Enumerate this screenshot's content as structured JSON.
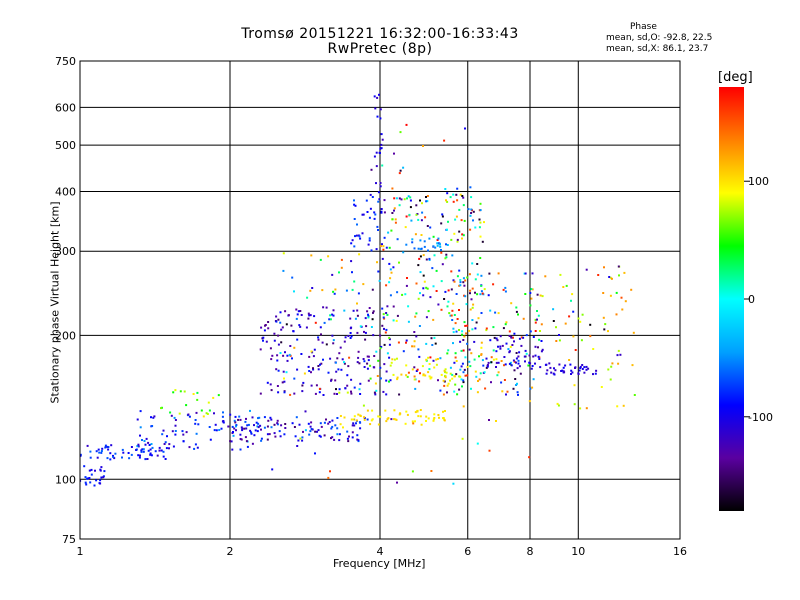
{
  "chart_data": {
    "type": "scatter",
    "title": "Tromsø 20151221 16:32:00-16:33:43",
    "subtitle": "RwPretec (8p)",
    "xlabel": "Frequency [MHz]",
    "ylabel": "Stationary phase Virtual Height [km]",
    "x_scale": "log",
    "y_scale": "log",
    "xlim": [
      1,
      16
    ],
    "ylim": [
      75,
      750
    ],
    "x_ticks": [
      1,
      2,
      4,
      6,
      8,
      10,
      16
    ],
    "y_ticks": [
      75,
      100,
      200,
      300,
      400,
      500,
      600,
      750
    ],
    "grid": true,
    "phase_stats": {
      "title": "Phase",
      "o_mode": "mean, sd,O: -92.8, 22.5",
      "x_mode": "mean, sd,X:  86.1, 23.7"
    },
    "colorbar": {
      "label": "[deg]",
      "ticks": [
        "100",
        "0",
        "-100"
      ],
      "tick_values": [
        100,
        0,
        -100
      ],
      "range": [
        -180,
        180
      ],
      "colors": [
        "#000000",
        "#5a00a0",
        "#0000ff",
        "#00a0ff",
        "#00ffff",
        "#00ff00",
        "#ffff00",
        "#ff8000",
        "#ff0000"
      ]
    },
    "clusters": [
      {
        "x": [
          1.0,
          1.12
        ],
        "y": [
          96,
          108
        ],
        "phase": [
          -110,
          -70
        ],
        "n": 25
      },
      {
        "x": [
          1.0,
          1.5
        ],
        "y": [
          110,
          118
        ],
        "phase": [
          -120,
          -60
        ],
        "n": 60
      },
      {
        "x": [
          1.3,
          2.3
        ],
        "y": [
          115,
          140
        ],
        "phase": [
          -130,
          -40
        ],
        "n": 90
      },
      {
        "x": [
          1.45,
          1.9
        ],
        "y": [
          135,
          155
        ],
        "phase": [
          20,
          110
        ],
        "n": 20
      },
      {
        "x": [
          2.0,
          3.8
        ],
        "y": [
          120,
          135
        ],
        "phase": [
          -150,
          -60
        ],
        "n": 110
      },
      {
        "x": [
          3.3,
          4.0
        ],
        "y": [
          128,
          140
        ],
        "phase": [
          90,
          110
        ],
        "n": 20
      },
      {
        "x": [
          4.0,
          5.5
        ],
        "y": [
          130,
          140
        ],
        "phase": [
          90,
          110
        ],
        "n": 40
      },
      {
        "x": [
          2.3,
          4.2
        ],
        "y": [
          150,
          230
        ],
        "phase": [
          -150,
          -80
        ],
        "n": 180
      },
      {
        "x": [
          2.5,
          4.2
        ],
        "y": [
          150,
          300
        ],
        "phase": [
          -180,
          180
        ],
        "n": 90
      },
      {
        "x": [
          3.5,
          4.1
        ],
        "y": [
          300,
          400
        ],
        "phase": [
          -110,
          -60
        ],
        "n": 40
      },
      {
        "x": [
          3.9,
          4.05
        ],
        "y": [
          400,
          640
        ],
        "phase": [
          -120,
          -90
        ],
        "n": 20
      },
      {
        "x": [
          4.0,
          6.5
        ],
        "y": [
          150,
          400
        ],
        "phase": [
          -180,
          180
        ],
        "n": 280
      },
      {
        "x": [
          4.5,
          5.5
        ],
        "y": [
          300,
          320
        ],
        "phase": [
          -70,
          -30
        ],
        "n": 25
      },
      {
        "x": [
          4.2,
          5.8
        ],
        "y": [
          160,
          180
        ],
        "phase": [
          80,
          110
        ],
        "n": 40
      },
      {
        "x": [
          5.5,
          8.5
        ],
        "y": [
          150,
          270
        ],
        "phase": [
          -180,
          180
        ],
        "n": 160
      },
      {
        "x": [
          6.5,
          8.5
        ],
        "y": [
          170,
          200
        ],
        "phase": [
          -130,
          -90
        ],
        "n": 50
      },
      {
        "x": [
          8.5,
          11
        ],
        "y": [
          165,
          175
        ],
        "phase": [
          -120,
          -90
        ],
        "n": 40
      },
      {
        "x": [
          9,
          13
        ],
        "y": [
          140,
          280
        ],
        "phase": [
          60,
          140
        ],
        "n": 40
      },
      {
        "x": [
          8,
          12.5
        ],
        "y": [
          180,
          290
        ],
        "phase": [
          -180,
          180
        ],
        "n": 30
      },
      {
        "x": [
          3.7,
          6.4
        ],
        "y": [
          400,
          620
        ],
        "phase": [
          -180,
          180
        ],
        "n": 15
      },
      {
        "x": [
          2.4,
          8
        ],
        "y": [
          95,
          150
        ],
        "phase": [
          -180,
          180
        ],
        "n": 25
      }
    ]
  }
}
